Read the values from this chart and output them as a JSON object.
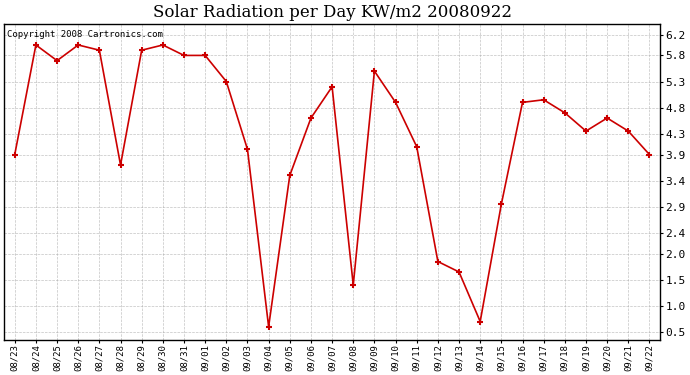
{
  "title": "Solar Radiation per Day KW/m2 20080922",
  "copyright_text": "Copyright 2008 Cartronics.com",
  "labels": [
    "08/23",
    "08/24",
    "08/25",
    "08/26",
    "08/27",
    "08/28",
    "08/29",
    "08/30",
    "08/31",
    "09/01",
    "09/02",
    "09/03",
    "09/04",
    "09/05",
    "09/06",
    "09/07",
    "09/08",
    "09/09",
    "09/10",
    "09/11",
    "09/12",
    "09/13",
    "09/14",
    "09/15",
    "09/16",
    "09/17",
    "09/18",
    "09/19",
    "09/20",
    "09/21",
    "09/22"
  ],
  "values": [
    3.9,
    6.0,
    5.7,
    6.0,
    5.9,
    3.7,
    5.9,
    6.0,
    5.8,
    5.8,
    5.3,
    4.0,
    0.6,
    3.5,
    4.6,
    5.2,
    1.4,
    5.5,
    4.9,
    4.05,
    1.85,
    1.65,
    0.7,
    2.95,
    4.9,
    4.95,
    4.7,
    4.35,
    4.6,
    4.35,
    3.9
  ],
  "line_color": "#cc0000",
  "marker": "+",
  "marker_color": "#cc0000",
  "bg_color": "#ffffff",
  "grid_color": "#aaaaaa",
  "yticks": [
    0.5,
    1.0,
    1.5,
    2.0,
    2.4,
    2.9,
    3.4,
    3.9,
    4.3,
    4.8,
    5.3,
    5.8,
    6.2
  ],
  "figwidth": 6.9,
  "figheight": 3.75,
  "dpi": 100
}
